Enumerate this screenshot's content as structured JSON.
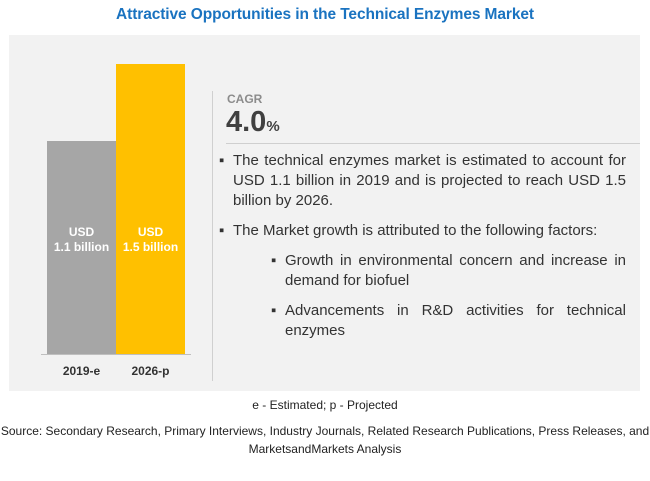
{
  "title": "Attractive Opportunities in the Technical Enzymes Market",
  "cagr": {
    "label": "CAGR",
    "value": "4.0",
    "unit": "%"
  },
  "chart_data": {
    "type": "bar",
    "categories": [
      "2019-e",
      "2026-p"
    ],
    "values": [
      1.1,
      1.5
    ],
    "data_labels": [
      [
        "USD",
        "1.1 billion"
      ],
      [
        "USD",
        "1.5 billion"
      ]
    ],
    "bar_colors": [
      "#a6a6a6",
      "#ffc000"
    ],
    "ylim": [
      0,
      1.55
    ],
    "title": "",
    "xlabel": "",
    "ylabel": "",
    "grid": false,
    "legend": "none"
  },
  "bullets": [
    {
      "marker": "▪",
      "text": "The technical enzymes market is estimated to account for USD 1.1 billion in 2019 and is projected to reach USD 1.5 billion by 2026."
    },
    {
      "marker": "▪",
      "text": "The Market growth is attributed to the following factors:"
    },
    {
      "marker": "▪",
      "text": "Growth in environmental concern and increase in demand for biofuel"
    },
    {
      "marker": "▪",
      "text": "Advancements in R&D activities for technical enzymes"
    }
  ],
  "footnote": "e - Estimated; p - Projected",
  "source_line1": "Source: Secondary Research, Primary Interviews, Industry Journals, Related Research Publications, Press Releases, and",
  "source_line2": "MarketsandMarkets Analysis"
}
